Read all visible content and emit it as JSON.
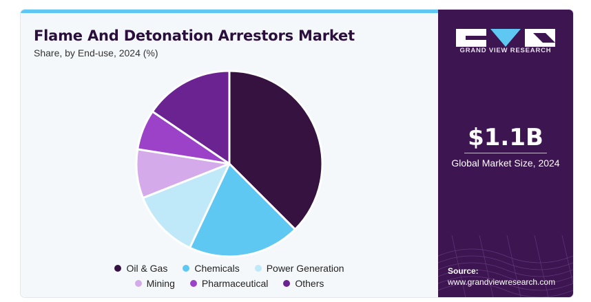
{
  "header": {
    "title": "Flame And Detonation Arrestors Market",
    "subtitle": "Share, by End-use, 2024 (%)"
  },
  "chart_data": {
    "type": "pie",
    "title": "Flame And Detonation Arrestors Market",
    "subtitle": "Share, by End-use, 2024 (%)",
    "categories": [
      "Oil & Gas",
      "Chemicals",
      "Power Generation",
      "Mining",
      "Pharmaceutical",
      "Others"
    ],
    "values": [
      37.5,
      19.5,
      12.0,
      8.5,
      7.0,
      15.5
    ],
    "colors": [
      "#35123f",
      "#5ec8f2",
      "#bfe8f8",
      "#d4aaea",
      "#9b42c8",
      "#6b2391"
    ],
    "legend_position": "bottom"
  },
  "sidebar": {
    "brand": "GRAND VIEW RESEARCH",
    "market_size_value": "$1.1B",
    "market_size_label": "Global Market Size, 2024",
    "source_label": "Source:",
    "source_url": "www.grandviewresearch.com",
    "colors": {
      "background": "#3d1551",
      "accent": "#5ec8f2"
    }
  }
}
